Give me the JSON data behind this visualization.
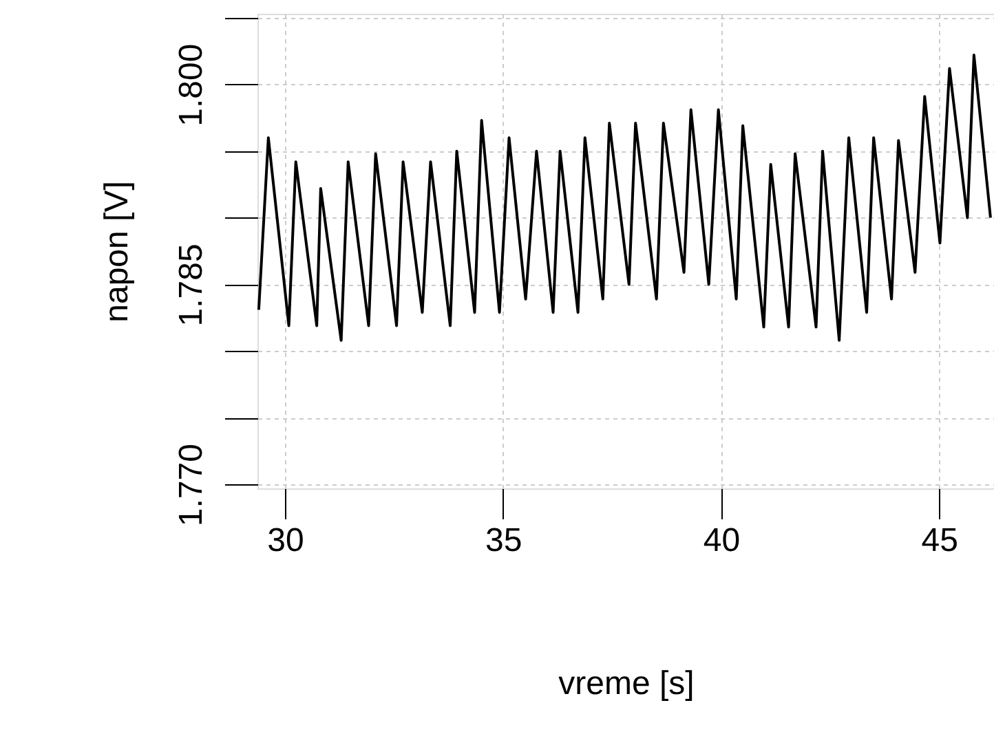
{
  "chart_data": {
    "type": "line",
    "xlabel": "vreme [s]",
    "ylabel": "napon [V]",
    "xlim": [
      29.37,
      46.26
    ],
    "ylim": [
      1.7697,
      1.8053
    ],
    "xticks": [
      30,
      35,
      40,
      45
    ],
    "yticks": [
      {
        "value": 1.77,
        "label": "1.770"
      },
      {
        "value": 1.775,
        "label": null
      },
      {
        "value": 1.78,
        "label": null
      },
      {
        "value": 1.785,
        "label": "1.785"
      },
      {
        "value": 1.79,
        "label": null
      },
      {
        "value": 1.795,
        "label": null
      },
      {
        "value": 1.8,
        "label": "1.800"
      },
      {
        "value": 1.805,
        "label": null
      }
    ],
    "grid": true,
    "line_style": "solid",
    "x": [
      29.4,
      29.62,
      30.09,
      30.25,
      30.73,
      30.82,
      31.29,
      31.45,
      31.92,
      32.08,
      32.56,
      32.71,
      33.15,
      33.34,
      33.79,
      33.94,
      34.35,
      34.51,
      34.92,
      35.14,
      35.52,
      35.77,
      36.15,
      36.31,
      36.72,
      36.88,
      37.29,
      37.44,
      37.89,
      38.04,
      38.52,
      38.68,
      39.15,
      39.31,
      39.72,
      39.94,
      40.35,
      40.5,
      40.98,
      41.14,
      41.55,
      41.7,
      42.18,
      42.33,
      42.71,
      42.93,
      43.34,
      43.5,
      43.91,
      44.07,
      44.45,
      44.67,
      45.02,
      45.24,
      45.65,
      45.8,
      46.18
    ],
    "series": [
      {
        "color": "#000000",
        "values": [
          1.7831,
          1.796,
          1.7819,
          1.7942,
          1.7819,
          1.7922,
          1.7808,
          1.7942,
          1.7819,
          1.7948,
          1.7819,
          1.7942,
          1.7829,
          1.7942,
          1.7819,
          1.795,
          1.7829,
          1.7973,
          1.7829,
          1.796,
          1.7839,
          1.795,
          1.7829,
          1.795,
          1.7829,
          1.796,
          1.7839,
          1.7971,
          1.785,
          1.7971,
          1.7839,
          1.7971,
          1.7859,
          1.7981,
          1.785,
          1.7981,
          1.7839,
          1.7969,
          1.7818,
          1.794,
          1.7818,
          1.7948,
          1.7818,
          1.795,
          1.7808,
          1.796,
          1.7829,
          1.796,
          1.7839,
          1.7958,
          1.7859,
          1.7991,
          1.7881,
          1.8012,
          1.79,
          1.8022,
          1.79
        ]
      }
    ]
  }
}
